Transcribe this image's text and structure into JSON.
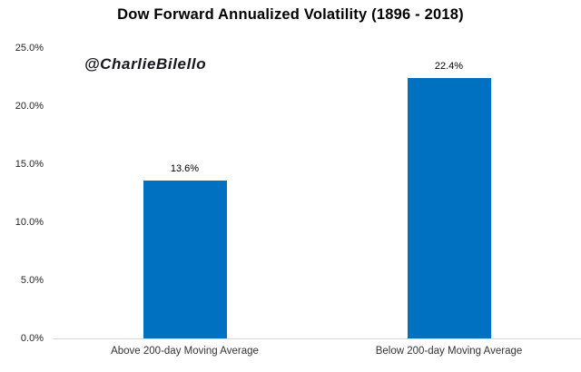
{
  "title": "Dow Forward Annualized Volatility (1896 - 2018)",
  "watermark": "@CharlieBilello",
  "colors": {
    "bar": "#0070C0",
    "axis_line": "#d9d9d9",
    "title_text": "#000000",
    "tick_text": "#262626",
    "category_text": "#333333",
    "watermark_text": "#16161d"
  },
  "chart_data": {
    "type": "bar",
    "title": "Dow Forward Annualized Volatility (1896 - 2018)",
    "categories": [
      "Above 200-day Moving Average",
      "Below 200-day Moving Average"
    ],
    "values": [
      13.6,
      22.4
    ],
    "value_labels": [
      "13.6%",
      "22.4%"
    ],
    "xlabel": "",
    "ylabel": "",
    "ylim": [
      0,
      25
    ],
    "y_ticks": [
      {
        "value": 0,
        "label": "0.0%"
      },
      {
        "value": 5,
        "label": "5.0%"
      },
      {
        "value": 10,
        "label": "10.0%"
      },
      {
        "value": 15,
        "label": "15.0%"
      },
      {
        "value": 20,
        "label": "20.0%"
      },
      {
        "value": 25,
        "label": "25.0%"
      }
    ],
    "grid": false,
    "legend": "none",
    "annotations": [
      "@CharlieBilello"
    ]
  }
}
